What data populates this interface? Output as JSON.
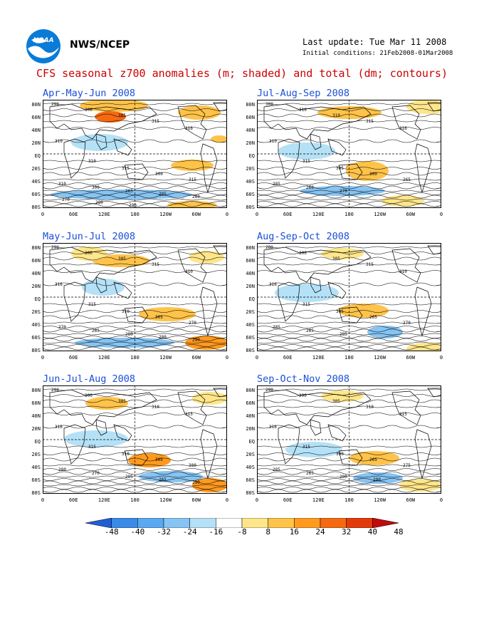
{
  "header": {
    "logo_name": "NOAA",
    "org": "NWS/NCEP",
    "last_update": "Last update: Tue Mar 11 2008",
    "initial_conditions": "Initial conditions: 21Feb2008-01Mar2008"
  },
  "title": "CFS seasonal z700 anomalies (m; shaded) and total (dm; contours)",
  "lat_labels": [
    "80N",
    "60N",
    "40N",
    "20N",
    "EQ",
    "20S",
    "40S",
    "60S",
    "80S"
  ],
  "lon_labels": [
    "0",
    "60E",
    "120E",
    "180",
    "120W",
    "60W",
    "0"
  ],
  "colorbar": {
    "colors": [
      "#1f5fd6",
      "#3a8ae6",
      "#5aa8ef",
      "#86c4f3",
      "#b5e1f7",
      "#ffffff",
      "#ffe68a",
      "#ffc34a",
      "#ff9a1f",
      "#f56a10",
      "#e33a0a",
      "#c20a0a"
    ],
    "labels": [
      "-48",
      "-40",
      "-32",
      "-24",
      "-16",
      "-8",
      "8",
      "16",
      "24",
      "32",
      "40",
      "48"
    ]
  },
  "panels": [
    {
      "title": "Apr-May-Jun 2008",
      "contours": [
        "290",
        "300",
        "305",
        "315",
        "316",
        "310",
        "310",
        "315",
        "300",
        "315",
        "310",
        "300",
        "265",
        "285",
        "280",
        "270",
        "280",
        "290"
      ],
      "anomalies": [
        {
          "x": 100,
          "y": 8,
          "rx": 48,
          "ry": 9,
          "level": 16
        },
        {
          "x": 95,
          "y": 24,
          "rx": 22,
          "ry": 8,
          "level": 32
        },
        {
          "x": 220,
          "y": 18,
          "rx": 30,
          "ry": 10,
          "level": 16
        },
        {
          "x": 248,
          "y": 55,
          "rx": 12,
          "ry": 5,
          "level": 16
        },
        {
          "x": 210,
          "y": 92,
          "rx": 30,
          "ry": 8,
          "level": 16
        },
        {
          "x": 80,
          "y": 60,
          "rx": 40,
          "ry": 12,
          "level": -8
        },
        {
          "x": 110,
          "y": 133,
          "rx": 100,
          "ry": 7,
          "level": -16
        },
        {
          "x": 210,
          "y": 148,
          "rx": 35,
          "ry": 6,
          "level": 16
        }
      ]
    },
    {
      "title": "Jul-Aug-Sep 2008",
      "contours": [
        "300",
        "310",
        "310",
        "315",
        "316",
        "310",
        "315",
        "305",
        "300",
        "265",
        "285",
        "260",
        "270"
      ],
      "anomalies": [
        {
          "x": 130,
          "y": 18,
          "rx": 45,
          "ry": 9,
          "level": 16
        },
        {
          "x": 240,
          "y": 10,
          "rx": 30,
          "ry": 10,
          "level": 8
        },
        {
          "x": 140,
          "y": 95,
          "rx": 15,
          "ry": 6,
          "level": 24
        },
        {
          "x": 155,
          "y": 100,
          "rx": 30,
          "ry": 14,
          "level": 16
        },
        {
          "x": 70,
          "y": 72,
          "rx": 40,
          "ry": 12,
          "level": -8
        },
        {
          "x": 120,
          "y": 128,
          "rx": 60,
          "ry": 7,
          "level": -16
        },
        {
          "x": 205,
          "y": 142,
          "rx": 30,
          "ry": 8,
          "level": 8
        }
      ]
    },
    {
      "title": "May-Jun-Jul 2008",
      "contours": [
        "290",
        "300",
        "305",
        "315",
        "310",
        "316",
        "315",
        "310",
        "305",
        "270",
        "270",
        "265",
        "280",
        "280",
        "290"
      ],
      "anomalies": [
        {
          "x": 110,
          "y": 25,
          "rx": 40,
          "ry": 9,
          "level": 16
        },
        {
          "x": 65,
          "y": 15,
          "rx": 25,
          "ry": 10,
          "level": 8
        },
        {
          "x": 230,
          "y": 20,
          "rx": 25,
          "ry": 9,
          "level": 8
        },
        {
          "x": 175,
          "y": 100,
          "rx": 40,
          "ry": 10,
          "level": 16
        },
        {
          "x": 85,
          "y": 62,
          "rx": 30,
          "ry": 12,
          "level": -8
        },
        {
          "x": 115,
          "y": 140,
          "rx": 70,
          "ry": 7,
          "level": -16
        },
        {
          "x": 230,
          "y": 140,
          "rx": 30,
          "ry": 10,
          "level": 24
        }
      ]
    },
    {
      "title": "Aug-Sep-Oct 2008",
      "contours": [
        "280",
        "300",
        "305",
        "315",
        "310",
        "316",
        "315",
        "305",
        "265",
        "270",
        "285",
        "265",
        "285"
      ],
      "anomalies": [
        {
          "x": 150,
          "y": 95,
          "rx": 35,
          "ry": 10,
          "level": 16
        },
        {
          "x": 70,
          "y": 70,
          "rx": 45,
          "ry": 13,
          "level": -8
        },
        {
          "x": 180,
          "y": 125,
          "rx": 25,
          "ry": 9,
          "level": -16
        },
        {
          "x": 240,
          "y": 148,
          "rx": 30,
          "ry": 8,
          "level": 8
        },
        {
          "x": 120,
          "y": 15,
          "rx": 30,
          "ry": 8,
          "level": 8
        }
      ]
    },
    {
      "title": "Jun-Jul-Aug 2008",
      "contours": [
        "290",
        "300",
        "305",
        "310",
        "315",
        "316",
        "315",
        "310",
        "305",
        "300",
        "280",
        "270",
        "285",
        "265",
        "290"
      ],
      "anomalies": [
        {
          "x": 90,
          "y": 25,
          "rx": 30,
          "ry": 9,
          "level": 16
        },
        {
          "x": 235,
          "y": 18,
          "rx": 25,
          "ry": 9,
          "level": 8
        },
        {
          "x": 150,
          "y": 105,
          "rx": 30,
          "ry": 10,
          "level": 24
        },
        {
          "x": 75,
          "y": 75,
          "rx": 45,
          "ry": 12,
          "level": -8
        },
        {
          "x": 180,
          "y": 128,
          "rx": 45,
          "ry": 8,
          "level": -16
        },
        {
          "x": 235,
          "y": 140,
          "rx": 25,
          "ry": 10,
          "level": 24
        }
      ]
    },
    {
      "title": "Sep-Oct-Nov 2008",
      "contours": [
        "290",
        "300",
        "305",
        "310",
        "315",
        "316",
        "315",
        "300",
        "265",
        "275",
        "285",
        "265",
        "280",
        "290"
      ],
      "anomalies": [
        {
          "x": 165,
          "y": 102,
          "rx": 35,
          "ry": 10,
          "level": 16
        },
        {
          "x": 80,
          "y": 90,
          "rx": 40,
          "ry": 11,
          "level": -8
        },
        {
          "x": 170,
          "y": 130,
          "rx": 35,
          "ry": 8,
          "level": -16
        },
        {
          "x": 230,
          "y": 140,
          "rx": 30,
          "ry": 9,
          "level": 8
        },
        {
          "x": 120,
          "y": 15,
          "rx": 30,
          "ry": 8,
          "level": 8
        }
      ]
    }
  ]
}
